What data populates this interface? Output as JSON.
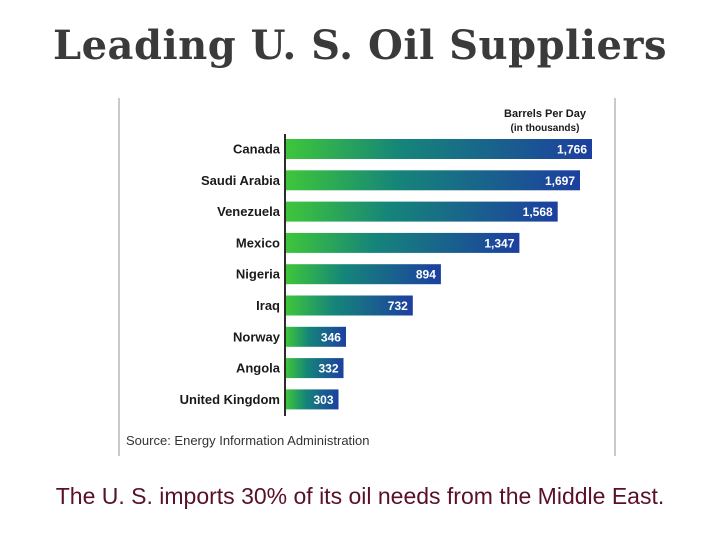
{
  "slide": {
    "title": "Leading U. S. Oil Suppliers",
    "caption": "The U. S. imports 30% of its oil needs from the Middle East."
  },
  "chart_data": {
    "type": "bar",
    "orientation": "horizontal",
    "unit_header_line1": "Barrels Per Day",
    "unit_header_line2": "(in thousands)",
    "source": "Source: Energy Information Administration",
    "categories": [
      "Canada",
      "Saudi Arabia",
      "Venezuela",
      "Mexico",
      "Nigeria",
      "Iraq",
      "Norway",
      "Angola",
      "United Kingdom"
    ],
    "values": [
      1766,
      1697,
      1568,
      1347,
      894,
      732,
      346,
      332,
      303
    ],
    "value_labels": [
      "1,766",
      "1,697",
      "1,568",
      "1,347",
      "894",
      "732",
      "346",
      "332",
      "303"
    ],
    "xlim": [
      0,
      1766
    ],
    "grid": false,
    "colors": {
      "bar_start": "#3ec63a",
      "bar_mid": "#15847a",
      "bar_end": "#1d3fa0",
      "axis": "#2b2b2b",
      "value_text": "#ffffff",
      "label_text": "#1a1a1a"
    }
  }
}
